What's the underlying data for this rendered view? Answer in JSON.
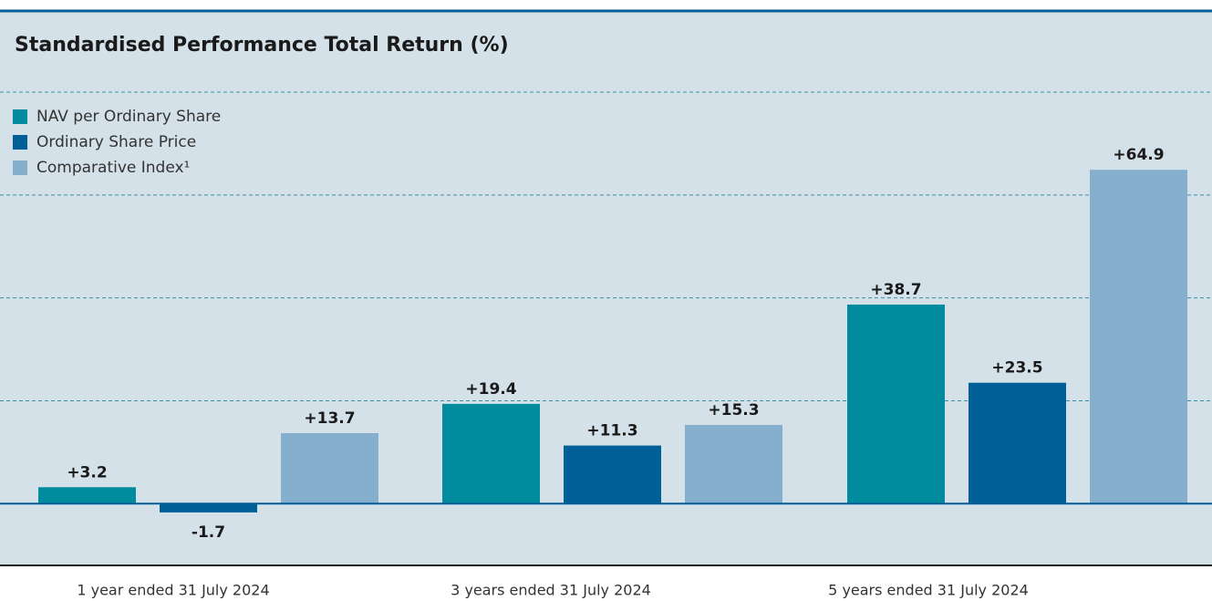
{
  "chart_data": {
    "type": "bar",
    "title": "Standardised Performance Total Return (%)",
    "categories": [
      "1 year ended 31 July 2024",
      "3 years ended 31 July 2024",
      "5 years ended 31 July 2024"
    ],
    "series": [
      {
        "name": "NAV per Ordinary Share",
        "color": "#008c9e",
        "values": [
          3.2,
          19.4,
          38.7
        ],
        "value_labels": [
          "+3.2",
          "+19.4",
          "+38.7"
        ]
      },
      {
        "name": "Ordinary Share Price",
        "color": "#005f96",
        "values": [
          -1.7,
          11.3,
          23.5
        ],
        "value_labels": [
          "-1.7",
          "+11.3",
          "+23.5"
        ]
      },
      {
        "name": "Comparative Index¹",
        "color": "#86aecd",
        "values": [
          13.7,
          15.3,
          64.9
        ],
        "value_labels": [
          "+13.7",
          "+15.3",
          "+64.9"
        ]
      }
    ],
    "ylim": [
      -12,
      80
    ],
    "yticks": [
      0,
      20,
      40,
      60,
      80
    ],
    "grid": true,
    "legend": "top-left"
  }
}
